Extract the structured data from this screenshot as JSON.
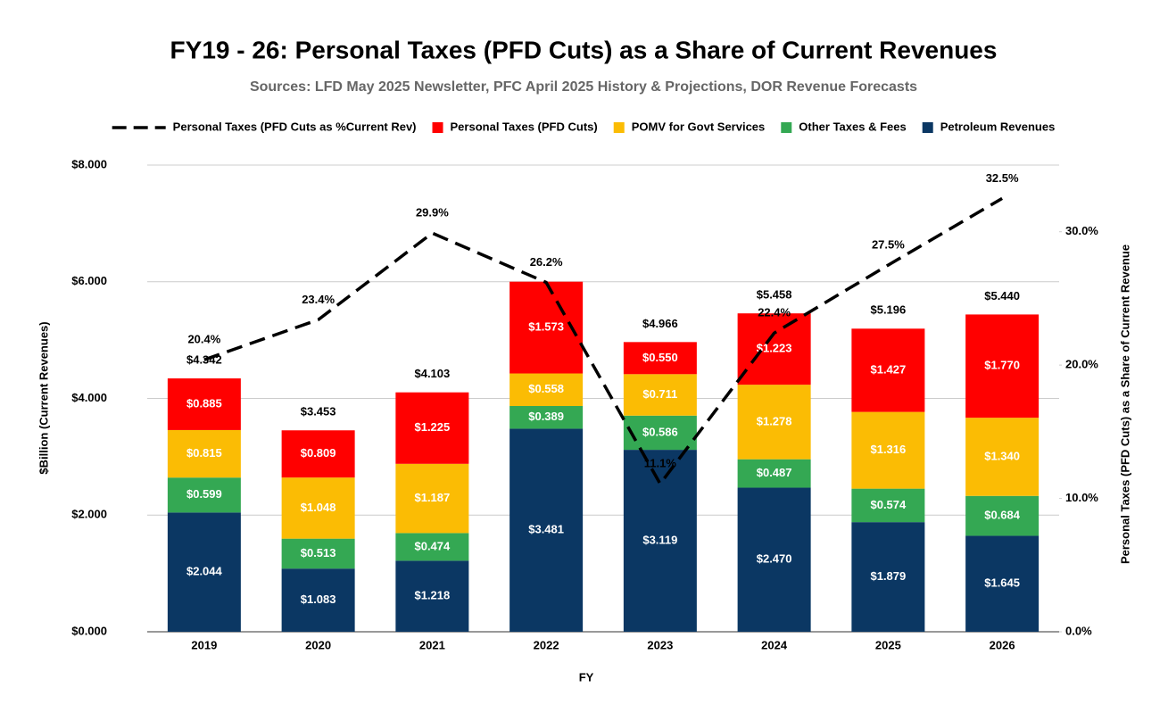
{
  "chart_data": {
    "type": "bar",
    "stacked": true,
    "title": "FY19 - 26: Personal Taxes (PFD Cuts) as a Share of Current Revenues",
    "subtitle": "Sources: LFD May 2025 Newsletter, PFC April 2025 History & Projections, DOR Revenue Forecasts",
    "x_label": "FY",
    "y_label": "$Billion (Current Revenues)",
    "y2_label": "Personal Taxes (PFD Cuts) as a Share of Current Revenue",
    "categories": [
      "2019",
      "2020",
      "2021",
      "2022",
      "2023",
      "2024",
      "2025",
      "2026"
    ],
    "series": [
      {
        "name": "Petroleum Revenues",
        "color": "#0b3763",
        "values": [
          2.044,
          1.083,
          1.218,
          3.481,
          3.119,
          2.47,
          1.879,
          1.645
        ],
        "value_labels": [
          "$2.044",
          "$1.083",
          "$1.218",
          "$3.481",
          "$3.119",
          "$2.470",
          "$1.879",
          "$1.645"
        ]
      },
      {
        "name": "Other Taxes & Fees",
        "color": "#34a853",
        "values": [
          0.599,
          0.513,
          0.474,
          0.389,
          0.586,
          0.487,
          0.574,
          0.684
        ],
        "value_labels": [
          "$0.599",
          "$0.513",
          "$0.474",
          "$0.389",
          "$0.586",
          "$0.487",
          "$0.574",
          "$0.684"
        ]
      },
      {
        "name": "POMV for Govt Services",
        "color": "#fbbc04",
        "values": [
          0.815,
          1.048,
          1.187,
          0.558,
          0.711,
          1.278,
          1.316,
          1.34
        ],
        "value_labels": [
          "$0.815",
          "$1.048",
          "$1.187",
          "$0.558",
          "$0.711",
          "$1.278",
          "$1.316",
          "$1.340"
        ]
      },
      {
        "name": "Personal Taxes (PFD Cuts)",
        "color": "#ff0000",
        "values": [
          0.885,
          0.809,
          1.225,
          1.573,
          0.55,
          1.223,
          1.427,
          1.77
        ],
        "value_labels": [
          "$0.885",
          "$0.809",
          "$1.225",
          "$1.573",
          "$0.550",
          "$1.223",
          "$1.427",
          "$1.770"
        ]
      },
      {
        "name": "Personal Taxes (PFD Cuts as %Current Rev)",
        "type": "line",
        "dashed": true,
        "axis": "y2",
        "color": "#000000",
        "values": [
          20.4,
          23.4,
          29.9,
          26.2,
          11.1,
          22.4,
          27.5,
          32.5
        ],
        "value_labels": [
          "20.4%",
          "23.4%",
          "29.9%",
          "26.2%",
          "11.1%",
          "22.4%",
          "27.5%",
          "32.5%"
        ]
      }
    ],
    "totals": {
      "values": [
        4.342,
        3.453,
        4.103,
        null,
        4.966,
        5.458,
        5.196,
        5.44
      ],
      "value_labels": [
        "$4.342",
        "$3.453",
        "$4.103",
        null,
        "$4.966",
        "$5.458",
        "$5.196",
        "$5.440"
      ]
    },
    "ylim": [
      0,
      8
    ],
    "yticks": [
      {
        "value": 0,
        "label": "$0.000"
      },
      {
        "value": 2,
        "label": "$2.000"
      },
      {
        "value": 4,
        "label": "$4.000"
      },
      {
        "value": 6,
        "label": "$6.000"
      },
      {
        "value": 8,
        "label": "$8.000"
      }
    ],
    "y2lim": [
      0,
      35
    ],
    "y2ticks": [
      {
        "value": 0,
        "label": "0.0%"
      },
      {
        "value": 10,
        "label": "10.0%"
      },
      {
        "value": 20,
        "label": "20.0%"
      },
      {
        "value": 30,
        "label": "30.0%"
      }
    ],
    "grid": true,
    "legend": "top"
  }
}
